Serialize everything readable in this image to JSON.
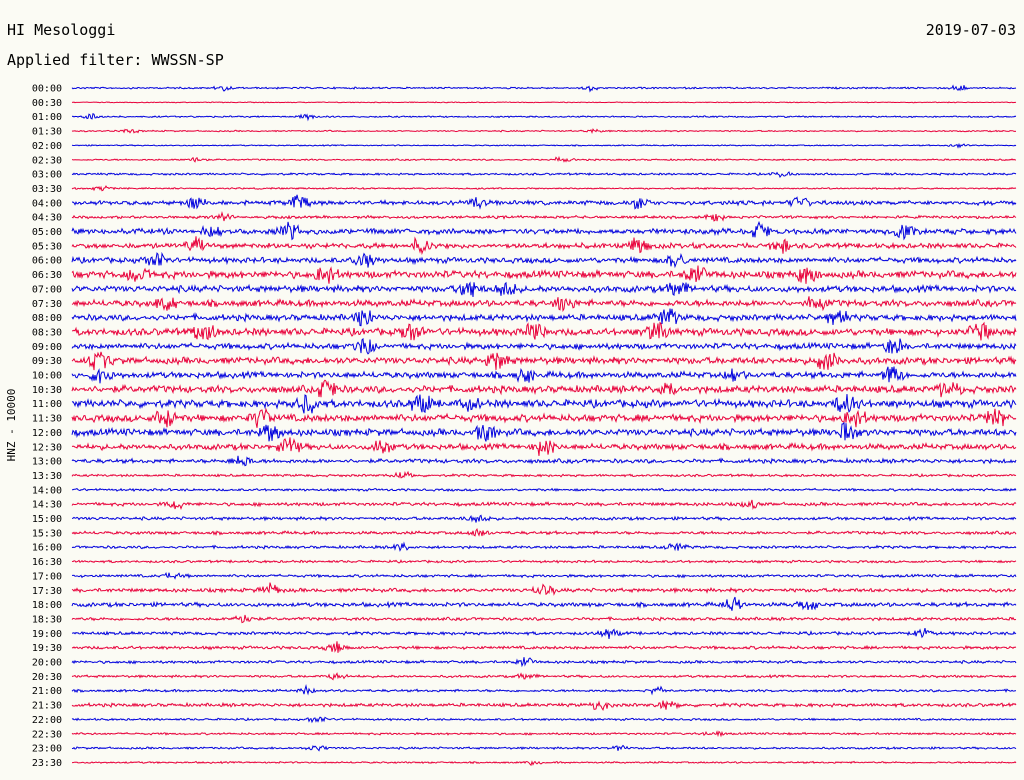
{
  "header": {
    "station": "HI Mesologgi",
    "date": "2019-07-03",
    "filter_label": "Applied filter: WWSSN-SP"
  },
  "chart_data": {
    "type": "line",
    "title": "HI Mesologgi",
    "ylabel": "HNZ - 10000",
    "colors": {
      "odd": "#0000dd",
      "even": "#e8003a"
    },
    "rows": [
      {
        "label": "00:00",
        "amp": 1,
        "events": [
          0.16,
          0.55,
          0.94
        ]
      },
      {
        "label": "00:30",
        "amp": 0.5,
        "events": []
      },
      {
        "label": "01:00",
        "amp": 0.9,
        "events": [
          0.02,
          0.25
        ]
      },
      {
        "label": "01:30",
        "amp": 0.8,
        "events": [
          0.06,
          0.55
        ]
      },
      {
        "label": "02:00",
        "amp": 0.7,
        "events": [
          0.94
        ]
      },
      {
        "label": "02:30",
        "amp": 0.9,
        "events": [
          0.13,
          0.52
        ]
      },
      {
        "label": "03:00",
        "amp": 1.2,
        "events": [
          0.75
        ]
      },
      {
        "label": "03:30",
        "amp": 0.9,
        "events": [
          0.03
        ]
      },
      {
        "label": "04:00",
        "amp": 2.5,
        "events": [
          0.13,
          0.24,
          0.43,
          0.6,
          0.77
        ]
      },
      {
        "label": "04:30",
        "amp": 1.6,
        "events": [
          0.16,
          0.68
        ]
      },
      {
        "label": "05:00",
        "amp": 3.2,
        "events": [
          0.15,
          0.23,
          0.73,
          0.88
        ]
      },
      {
        "label": "05:30",
        "amp": 3,
        "events": [
          0.13,
          0.37,
          0.6,
          0.75
        ]
      },
      {
        "label": "06:00",
        "amp": 3.2,
        "events": [
          0.09,
          0.31,
          0.64
        ]
      },
      {
        "label": "06:30",
        "amp": 4.2,
        "events": [
          0.07,
          0.27,
          0.66,
          0.78
        ]
      },
      {
        "label": "07:00",
        "amp": 3.8,
        "events": [
          0.42,
          0.46,
          0.64
        ]
      },
      {
        "label": "07:30",
        "amp": 3.8,
        "events": [
          0.1,
          0.52,
          0.79
        ]
      },
      {
        "label": "08:00",
        "amp": 3.6,
        "events": [
          0.31,
          0.63,
          0.81
        ]
      },
      {
        "label": "08:30",
        "amp": 4.2,
        "events": [
          0.14,
          0.36,
          0.49,
          0.62,
          0.96
        ]
      },
      {
        "label": "09:00",
        "amp": 3.4,
        "events": [
          0.31,
          0.87
        ]
      },
      {
        "label": "09:30",
        "amp": 4,
        "events": [
          0.03,
          0.45,
          0.8
        ]
      },
      {
        "label": "10:00",
        "amp": 3.6,
        "events": [
          0.03,
          0.48,
          0.7,
          0.87
        ]
      },
      {
        "label": "10:30",
        "amp": 4.2,
        "events": [
          0.27,
          0.63,
          0.93
        ]
      },
      {
        "label": "11:00",
        "amp": 4.4,
        "events": [
          0.25,
          0.37,
          0.42,
          0.82
        ]
      },
      {
        "label": "11:30",
        "amp": 4.2,
        "events": [
          0.1,
          0.2,
          0.83,
          0.98
        ]
      },
      {
        "label": "12:00",
        "amp": 4,
        "events": [
          0.21,
          0.44,
          0.82
        ]
      },
      {
        "label": "12:30",
        "amp": 3.4,
        "events": [
          0.23,
          0.33,
          0.5
        ]
      },
      {
        "label": "13:00",
        "amp": 2.4,
        "events": [
          0.18
        ]
      },
      {
        "label": "13:30",
        "amp": 1.4,
        "events": [
          0.35
        ]
      },
      {
        "label": "14:00",
        "amp": 1.4,
        "events": []
      },
      {
        "label": "14:30",
        "amp": 2,
        "events": [
          0.11,
          0.72
        ]
      },
      {
        "label": "15:00",
        "amp": 1.8,
        "events": [
          0.43
        ]
      },
      {
        "label": "15:30",
        "amp": 1.8,
        "events": [
          0.43
        ]
      },
      {
        "label": "16:00",
        "amp": 1.6,
        "events": [
          0.35,
          0.64
        ]
      },
      {
        "label": "16:30",
        "amp": 1.4,
        "events": []
      },
      {
        "label": "17:00",
        "amp": 1.6,
        "events": [
          0.11
        ]
      },
      {
        "label": "17:30",
        "amp": 2.2,
        "events": [
          0.21,
          0.5
        ]
      },
      {
        "label": "18:00",
        "amp": 2.4,
        "events": [
          0.7,
          0.78
        ]
      },
      {
        "label": "18:30",
        "amp": 1.8,
        "events": [
          0.18
        ]
      },
      {
        "label": "19:00",
        "amp": 1.8,
        "events": [
          0.57,
          0.9
        ]
      },
      {
        "label": "19:30",
        "amp": 1.8,
        "events": [
          0.28
        ]
      },
      {
        "label": "20:00",
        "amp": 1.6,
        "events": [
          0.48
        ]
      },
      {
        "label": "20:30",
        "amp": 1.4,
        "events": [
          0.28,
          0.48
        ]
      },
      {
        "label": "21:00",
        "amp": 1.4,
        "events": [
          0.25,
          0.62
        ]
      },
      {
        "label": "21:30",
        "amp": 2,
        "events": [
          0.56,
          0.63
        ]
      },
      {
        "label": "22:00",
        "amp": 1.2,
        "events": [
          0.26
        ]
      },
      {
        "label": "22:30",
        "amp": 1.2,
        "events": [
          0.68
        ]
      },
      {
        "label": "23:00",
        "amp": 1.2,
        "events": [
          0.26,
          0.58
        ]
      },
      {
        "label": "23:30",
        "amp": 1,
        "events": [
          0.49
        ]
      }
    ]
  }
}
